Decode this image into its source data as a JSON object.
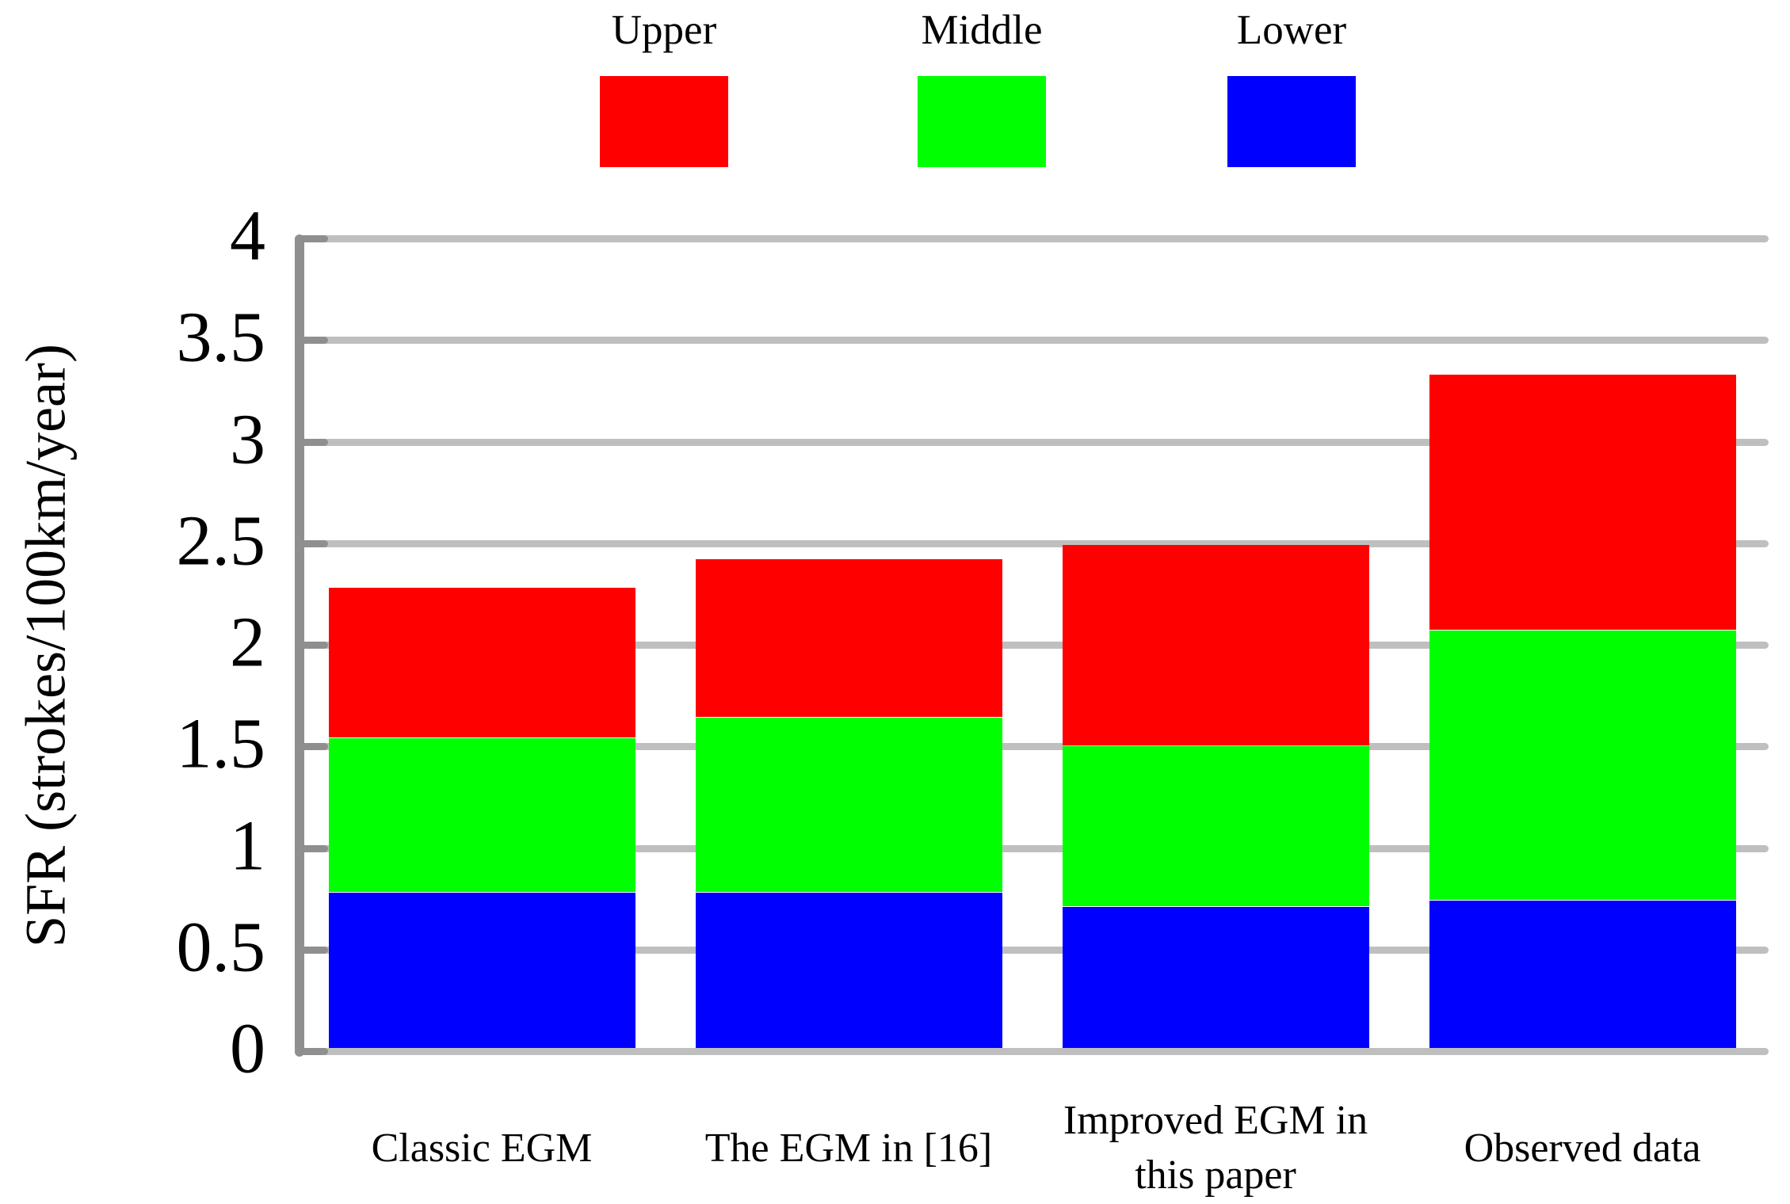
{
  "chart_data": {
    "type": "bar",
    "stacked": true,
    "title": "",
    "categories": [
      "Classic EGM",
      "The EGM in [16]",
      "Improved EGM in this paper",
      "Observed data"
    ],
    "categories_display": [
      [
        "Classic EGM"
      ],
      [
        "The EGM in [16]"
      ],
      [
        "Improved EGM in",
        "this paper"
      ],
      [
        "Observed data"
      ]
    ],
    "series": [
      {
        "name": "Lower",
        "color": "#0000ff",
        "values": [
          0.78,
          0.78,
          0.71,
          0.74
        ]
      },
      {
        "name": "Middle",
        "color": "#00ff00",
        "values": [
          0.76,
          0.86,
          0.79,
          1.33
        ]
      },
      {
        "name": "Upper",
        "color": "#ff0000",
        "values": [
          0.74,
          0.78,
          0.99,
          1.26
        ]
      }
    ],
    "stack_totals": [
      2.28,
      2.42,
      2.49,
      3.33
    ],
    "ylabel": "SFR (strokes/100km/year)",
    "xlabel": "",
    "ylim": [
      0,
      4
    ],
    "ytick_step": 0.5,
    "yticks": [
      "0",
      "0.5",
      "1",
      "1.5",
      "2",
      "2.5",
      "3",
      "3.5",
      "4"
    ],
    "grid": true,
    "legend": {
      "position": "top",
      "items": [
        {
          "label": "Upper",
          "color": "#ff0000"
        },
        {
          "label": "Middle",
          "color": "#00ff00"
        },
        {
          "label": "Lower",
          "color": "#0000ff"
        }
      ]
    },
    "axis_color": "#8f8f8f",
    "grid_color": "#bfbfbf"
  }
}
